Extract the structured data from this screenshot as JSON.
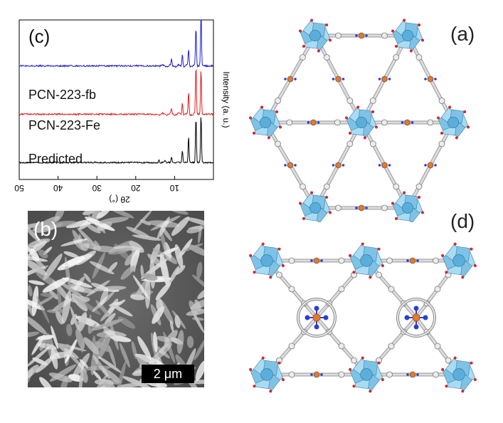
{
  "panels": {
    "a_label": "(a)",
    "b_label": "(b)",
    "c_label": "(c)",
    "d_label": "(d)"
  },
  "sem": {
    "scale_bar_text": "2 μm"
  },
  "chart_data": {
    "type": "line",
    "title": "",
    "xlabel": "2θ (°)",
    "ylabel": "Intensity (a. u.)",
    "x_axis_reversed": true,
    "xlim": [
      0,
      50
    ],
    "xticks": [
      10,
      20,
      30,
      40,
      50
    ],
    "ylim": [
      0,
      3.3
    ],
    "series": [
      {
        "name": "Predicted",
        "color": "#000000",
        "offset": 0,
        "peaks": [
          [
            3.2,
            1.0
          ],
          [
            4.5,
            0.95
          ],
          [
            6.4,
            0.55
          ],
          [
            8.0,
            0.25
          ],
          [
            10.8,
            0.12
          ],
          [
            12.5,
            0.06
          ],
          [
            14.0,
            0.05
          ]
        ]
      },
      {
        "name": "PCN-223-Fe",
        "color": "#e41a1c",
        "offset": 1,
        "peaks": [
          [
            3.2,
            0.95
          ],
          [
            4.5,
            1.0
          ],
          [
            6.4,
            0.45
          ],
          [
            8.0,
            0.25
          ],
          [
            10.8,
            0.1
          ]
        ]
      },
      {
        "name": "PCN-223-fb",
        "color": "#1f1fd0",
        "offset": 2,
        "peaks": [
          [
            3.2,
            1.2
          ],
          [
            4.5,
            0.8
          ],
          [
            6.4,
            0.35
          ],
          [
            8.0,
            0.25
          ],
          [
            10.8,
            0.12
          ]
        ]
      }
    ]
  }
}
